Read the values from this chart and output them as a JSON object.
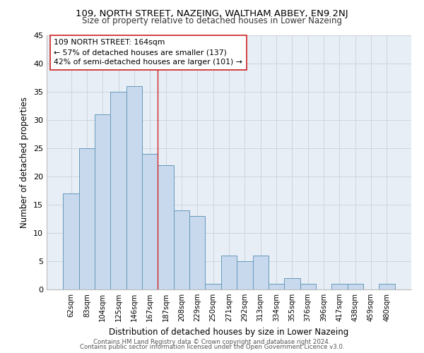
{
  "title1": "109, NORTH STREET, NAZEING, WALTHAM ABBEY, EN9 2NJ",
  "title2": "Size of property relative to detached houses in Lower Nazeing",
  "xlabel": "Distribution of detached houses by size in Lower Nazeing",
  "ylabel": "Number of detached properties",
  "categories": [
    "62sqm",
    "83sqm",
    "104sqm",
    "125sqm",
    "146sqm",
    "167sqm",
    "187sqm",
    "208sqm",
    "229sqm",
    "250sqm",
    "271sqm",
    "292sqm",
    "313sqm",
    "334sqm",
    "355sqm",
    "376sqm",
    "396sqm",
    "417sqm",
    "438sqm",
    "459sqm",
    "480sqm"
  ],
  "values": [
    17,
    25,
    31,
    35,
    36,
    24,
    22,
    14,
    13,
    1,
    6,
    5,
    6,
    1,
    2,
    1,
    0,
    1,
    1,
    0,
    1
  ],
  "bar_color": "#c8d9ee",
  "bar_edge_color": "#6699bb",
  "vline_x": 5.5,
  "vline_color": "#cc2222",
  "annotation_line1": "109 NORTH STREET: 164sqm",
  "annotation_line2": "← 57% of detached houses are smaller (137)",
  "annotation_line3": "42% of semi-detached houses are larger (101) →",
  "annotation_box_color": "white",
  "annotation_box_edge_color": "#cc2222",
  "ylim": [
    0,
    45
  ],
  "yticks": [
    0,
    5,
    10,
    15,
    20,
    25,
    30,
    35,
    40,
    45
  ],
  "footer1": "Contains HM Land Registry data © Crown copyright and database right 2024.",
  "footer2": "Contains public sector information licensed under the Open Government Licence v3.0.",
  "grid_color": "#cdd5e0",
  "bg_color": "#e8eef5"
}
